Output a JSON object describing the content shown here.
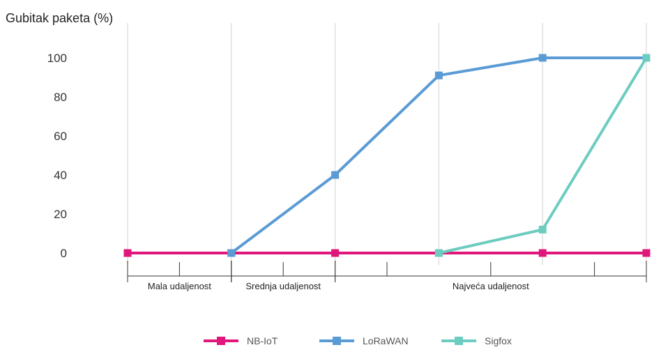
{
  "chart_data": {
    "type": "line",
    "title": "Gubitak paketa (%)",
    "xlabel": "",
    "ylabel": "",
    "ylim": [
      0,
      100
    ],
    "yticks": [
      0,
      20,
      40,
      60,
      80,
      100
    ],
    "x_points": 6,
    "category_groups": [
      {
        "label": "Mala udaljenost",
        "from": 0,
        "to": 1
      },
      {
        "label": "Srednja udaljenost",
        "from": 1,
        "to": 2
      },
      {
        "label": "Najveća udaljenost",
        "from": 2,
        "to": 5
      }
    ],
    "series": [
      {
        "name": "NB-IoT",
        "color": "#e0177a",
        "values": [
          0,
          0,
          0,
          0,
          0,
          0
        ]
      },
      {
        "name": "LoRaWAN",
        "color": "#5b9bd5",
        "values": [
          null,
          0,
          40,
          91,
          100,
          100
        ]
      },
      {
        "name": "Sigfox",
        "color": "#6dccc0",
        "values": [
          null,
          null,
          null,
          0,
          12,
          100
        ]
      }
    ],
    "grid": true,
    "legend_position": "bottom"
  }
}
